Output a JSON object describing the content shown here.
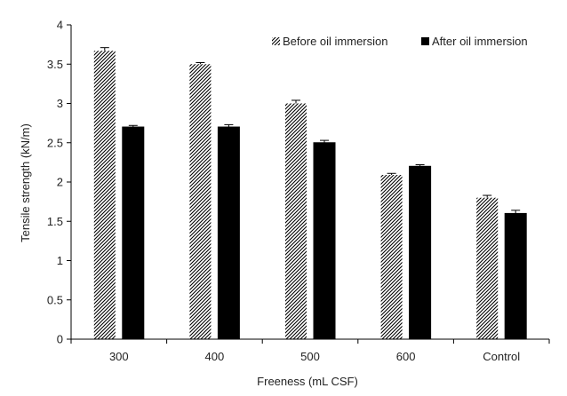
{
  "chart_data": {
    "type": "bar",
    "title": "",
    "xlabel": "Freeness (mL CSF)",
    "ylabel": "Tensile strength (kN/m)",
    "ylim": [
      0,
      4
    ],
    "yticks": [
      "0",
      "0.5",
      "1",
      "1.5",
      "2",
      "2.5",
      "3",
      "3.5",
      "4"
    ],
    "categories": [
      "300",
      "400",
      "500",
      "600",
      "Control"
    ],
    "grid": false,
    "legend_position": "top-right",
    "series": [
      {
        "name": "Before oil immersion",
        "pattern": "diagonal-hatch",
        "color": "#000000",
        "values": [
          3.67,
          3.5,
          3.0,
          2.09,
          1.8
        ],
        "errors": [
          0.04,
          0.02,
          0.04,
          0.02,
          0.03
        ]
      },
      {
        "name": "After oil immersion",
        "pattern": "solid",
        "color": "#000000",
        "values": [
          2.7,
          2.7,
          2.5,
          2.2,
          1.6
        ],
        "errors": [
          0.02,
          0.03,
          0.03,
          0.02,
          0.04
        ]
      }
    ]
  }
}
